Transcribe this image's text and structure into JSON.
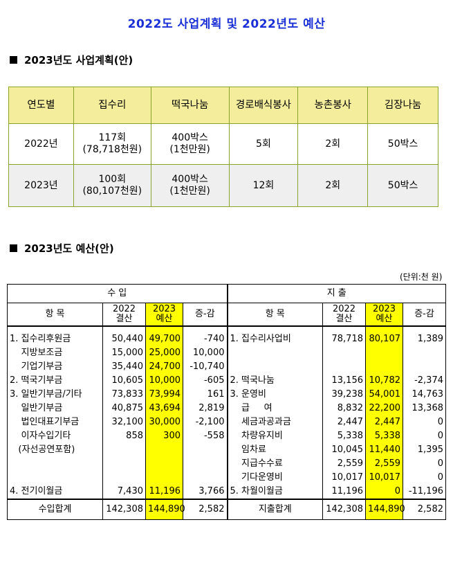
{
  "title": "2022도 사업계획 및 2022년도 예산",
  "plan_section": {
    "heading": "2023년도 사업계획(안)"
  },
  "plan_table": {
    "headers": [
      "연도별",
      "집수리",
      "떡국나눔",
      "경로배식봉사",
      "농촌봉사",
      "김장나눔"
    ],
    "rows": [
      {
        "year": "2022년",
        "cells": [
          [
            "117회",
            "(78,718천원)"
          ],
          [
            "400박스",
            "(1천만원)"
          ],
          [
            "5회"
          ],
          [
            "2회"
          ],
          [
            "50박스"
          ]
        ]
      },
      {
        "year": "2023년",
        "cells": [
          [
            "100회",
            "(80,107천원)"
          ],
          [
            "400박스",
            "(1천만원)"
          ],
          [
            "12회"
          ],
          [
            "2회"
          ],
          [
            "50박스"
          ]
        ]
      }
    ]
  },
  "budget_section": {
    "heading": "2023년도 예산(안)",
    "unit": "(단위:천 원)"
  },
  "budget": {
    "income_label": "수     입",
    "expense_label": "지     출",
    "col_item": "항     목",
    "col_2022": [
      "2022",
      "결산"
    ],
    "col_2023": [
      "2023",
      "예산"
    ],
    "col_diff": "증-감",
    "rows": [
      {
        "in": [
          "1. 집수리후원금",
          "50,440",
          "49,700",
          "-740"
        ],
        "ex": [
          "1. 집수리사업비",
          "78,718",
          "80,107",
          "1,389"
        ]
      },
      {
        "in": [
          "    지방보조금",
          "15,000",
          "25,000",
          "10,000"
        ],
        "ex": [
          "",
          "",
          "",
          ""
        ]
      },
      {
        "in": [
          "    기업기부금",
          "35,440",
          "24,700",
          "-10,740"
        ],
        "ex": [
          "",
          "",
          "",
          ""
        ]
      },
      {
        "in": [
          "",
          "",
          "",
          ""
        ],
        "ex": [
          "",
          "",
          "",
          ""
        ]
      },
      {
        "in": [
          "2. 떡국기부금",
          "10,605",
          "10,000",
          "-605"
        ],
        "ex": [
          "2. 떡국나눔",
          "13,156",
          "10,782",
          "-2,374"
        ]
      },
      {
        "in": [
          "",
          "",
          "",
          ""
        ],
        "ex": [
          "",
          "",
          "",
          ""
        ]
      },
      {
        "in": [
          "3. 일반기부금/기타",
          "73,833",
          "73,994",
          "161"
        ],
        "ex": [
          "3. 운영비",
          "39,238",
          "54,001",
          "14,763"
        ]
      },
      {
        "in": [
          "    일반기부금",
          "40,875",
          "43,694",
          "2,819"
        ],
        "ex": [
          "    급     여",
          "8,832",
          "22,200",
          "13,368"
        ]
      },
      {
        "in": [
          "    법인대표기부금",
          "32,100",
          "30,000",
          "-2,100"
        ],
        "ex": [
          "    세금과공과금",
          "2,447",
          "2,447",
          "0"
        ]
      },
      {
        "in": [
          "    이자수입기타",
          "858",
          "300",
          "-558"
        ],
        "ex": [
          "    차량유지비",
          "5,338",
          "5,338",
          "0"
        ]
      },
      {
        "in": [
          "   (자선공연포함)",
          "",
          "",
          ""
        ],
        "ex": [
          "    임차료",
          "10,045",
          "11,440",
          "1,395"
        ]
      },
      {
        "in": [
          "",
          "",
          "",
          ""
        ],
        "ex": [
          "    지급수수료",
          "2,559",
          "2,559",
          "0"
        ]
      },
      {
        "in": [
          "",
          "",
          "",
          ""
        ],
        "ex": [
          "    기다운영비",
          "10,017",
          "10,017",
          "0"
        ]
      },
      {
        "in": [
          "",
          "",
          "",
          ""
        ],
        "ex": [
          "",
          "",
          "",
          ""
        ]
      },
      {
        "in": [
          "4. 전기이월금",
          "7,430",
          "11,196",
          "3,766"
        ],
        "ex": [
          "5. 차월이월금",
          "11,196",
          "0",
          "-11,196"
        ]
      },
      {
        "in": [
          "",
          "",
          "",
          ""
        ],
        "ex": [
          "",
          "",
          "",
          ""
        ]
      }
    ],
    "totals": {
      "in": [
        "수입합계",
        "142,308",
        "144,890",
        "2,582"
      ],
      "ex": [
        "지출합계",
        "142,308",
        "144,890",
        "2,582"
      ]
    }
  }
}
